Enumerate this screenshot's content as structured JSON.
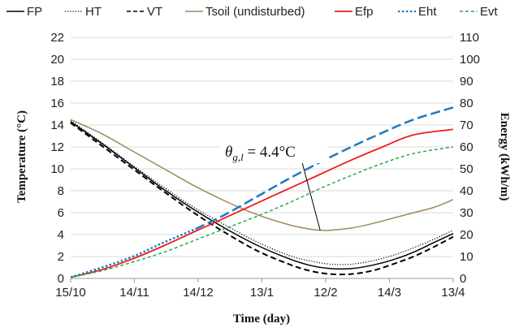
{
  "chart_data": {
    "type": "line",
    "xlabel": "Time (day)",
    "ylabel": "Temperature (°C)",
    "y2label": "Energy (kWh/m)",
    "x_ticks": [
      "15/10",
      "14/11",
      "14/12",
      "13/1",
      "12/2",
      "14/3",
      "13/4"
    ],
    "xlim": [
      0,
      184
    ],
    "ylim": [
      0,
      22
    ],
    "y2lim": [
      0,
      110
    ],
    "y_ticks": [
      "0",
      "2",
      "4",
      "6",
      "8",
      "10",
      "12",
      "14",
      "16",
      "18",
      "20",
      "22"
    ],
    "y2_ticks": [
      "0",
      "10",
      "20",
      "30",
      "40",
      "50",
      "60",
      "70",
      "80",
      "90",
      "100",
      "110"
    ],
    "grid": "horizontal",
    "legend_position": "top",
    "annotation": {
      "prefix": "θ",
      "subscript": "g,l",
      "suffix": " = 4.4°C"
    },
    "series": [
      {
        "name": "FP",
        "axis": "left",
        "color": "#000000",
        "dash": "",
        "width": 1.5,
        "x": [
          0,
          15,
          30,
          45,
          60,
          75,
          90,
          105,
          115,
          125,
          135,
          145,
          155,
          165,
          175,
          184
        ],
        "y": [
          14.3,
          12.3,
          10.2,
          8.1,
          6.2,
          4.5,
          3.0,
          1.8,
          1.2,
          0.9,
          0.9,
          1.2,
          1.7,
          2.4,
          3.3,
          4.1
        ]
      },
      {
        "name": "HT",
        "axis": "left",
        "color": "#000000",
        "dash": "1.2,2",
        "width": 1.2,
        "x": [
          0,
          15,
          30,
          45,
          60,
          75,
          90,
          105,
          115,
          125,
          135,
          145,
          155,
          165,
          175,
          184
        ],
        "y": [
          14.4,
          12.4,
          10.3,
          8.3,
          6.4,
          4.8,
          3.3,
          2.1,
          1.6,
          1.3,
          1.3,
          1.6,
          2.1,
          2.8,
          3.6,
          4.4
        ]
      },
      {
        "name": "VT",
        "axis": "left",
        "color": "#000000",
        "dash": "7,4",
        "width": 2,
        "x": [
          0,
          15,
          30,
          45,
          60,
          75,
          90,
          105,
          115,
          125,
          135,
          145,
          155,
          165,
          175,
          184
        ],
        "y": [
          14.2,
          12.1,
          10.0,
          7.9,
          5.9,
          4.1,
          2.5,
          1.3,
          0.7,
          0.4,
          0.4,
          0.7,
          1.3,
          2.0,
          2.9,
          3.8
        ]
      },
      {
        "name": "Tsoil (undisturbed)",
        "axis": "left",
        "color": "#9b8a5a",
        "dash": "",
        "width": 1.5,
        "x": [
          0,
          15,
          30,
          45,
          60,
          75,
          90,
          105,
          115,
          120,
          125,
          135,
          145,
          155,
          165,
          175,
          184
        ],
        "y": [
          14.5,
          13.2,
          11.6,
          10.0,
          8.4,
          7.0,
          5.8,
          4.9,
          4.5,
          4.4,
          4.4,
          4.6,
          5.0,
          5.5,
          6.0,
          6.5,
          7.2
        ]
      },
      {
        "name": "Efp",
        "axis": "right",
        "color": "#ee1c1c",
        "dash": "",
        "width": 1.8,
        "x": [
          0,
          15,
          30,
          45,
          60,
          75,
          90,
          105,
          120,
          135,
          150,
          165,
          184
        ],
        "y": [
          0.5,
          4,
          9,
          15,
          21.5,
          28,
          34.5,
          41,
          47.5,
          54,
          60,
          65.5,
          68
        ]
      },
      {
        "name": "Eht",
        "axis": "right",
        "color": "#1f7ac0",
        "dash": "2.5,2.5",
        "width": 2.5,
        "x": [
          0,
          15,
          30,
          45,
          60
        ],
        "y": [
          0.5,
          5,
          10,
          16.5,
          22.5
        ]
      },
      {
        "name": "Eht",
        "axis": "right",
        "color": "#1f7ac0",
        "dash": "12,5",
        "width": 2.5,
        "x": [
          60,
          75,
          90,
          105,
          120,
          135,
          150,
          165,
          184
        ],
        "y": [
          22.5,
          29.5,
          37.5,
          45.5,
          53,
          60,
          66.5,
          72.5,
          78
        ]
      },
      {
        "name": "Evt",
        "axis": "right",
        "color": "#2aa84a",
        "dash": "4,3",
        "width": 1.5,
        "x": [
          0,
          15,
          30,
          45,
          60,
          75,
          90,
          105,
          120,
          135,
          150,
          165,
          184
        ],
        "y": [
          0.5,
          3.5,
          7.5,
          12,
          17.5,
          23,
          28.5,
          34.5,
          41,
          47,
          52.5,
          57,
          60
        ]
      }
    ],
    "legend": [
      {
        "label": "FP",
        "color": "#000000",
        "dash": "",
        "width": 1.5
      },
      {
        "label": "HT",
        "color": "#000000",
        "dash": "1.2,2",
        "width": 1.2
      },
      {
        "label": "VT",
        "color": "#000000",
        "dash": "5,3",
        "width": 1.5
      },
      {
        "label": "Tsoil (undisturbed)",
        "color": "#9b8a5a",
        "dash": "",
        "width": 1.5
      },
      {
        "label": "Efp",
        "color": "#ee1c1c",
        "dash": "",
        "width": 1.8
      },
      {
        "label": "Eht",
        "color": "#1f7ac0",
        "dash": "2.5,2.5",
        "width": 2.2
      },
      {
        "label": "Evt",
        "color": "#2aa84a",
        "dash": "4,3",
        "width": 1.5
      }
    ]
  }
}
